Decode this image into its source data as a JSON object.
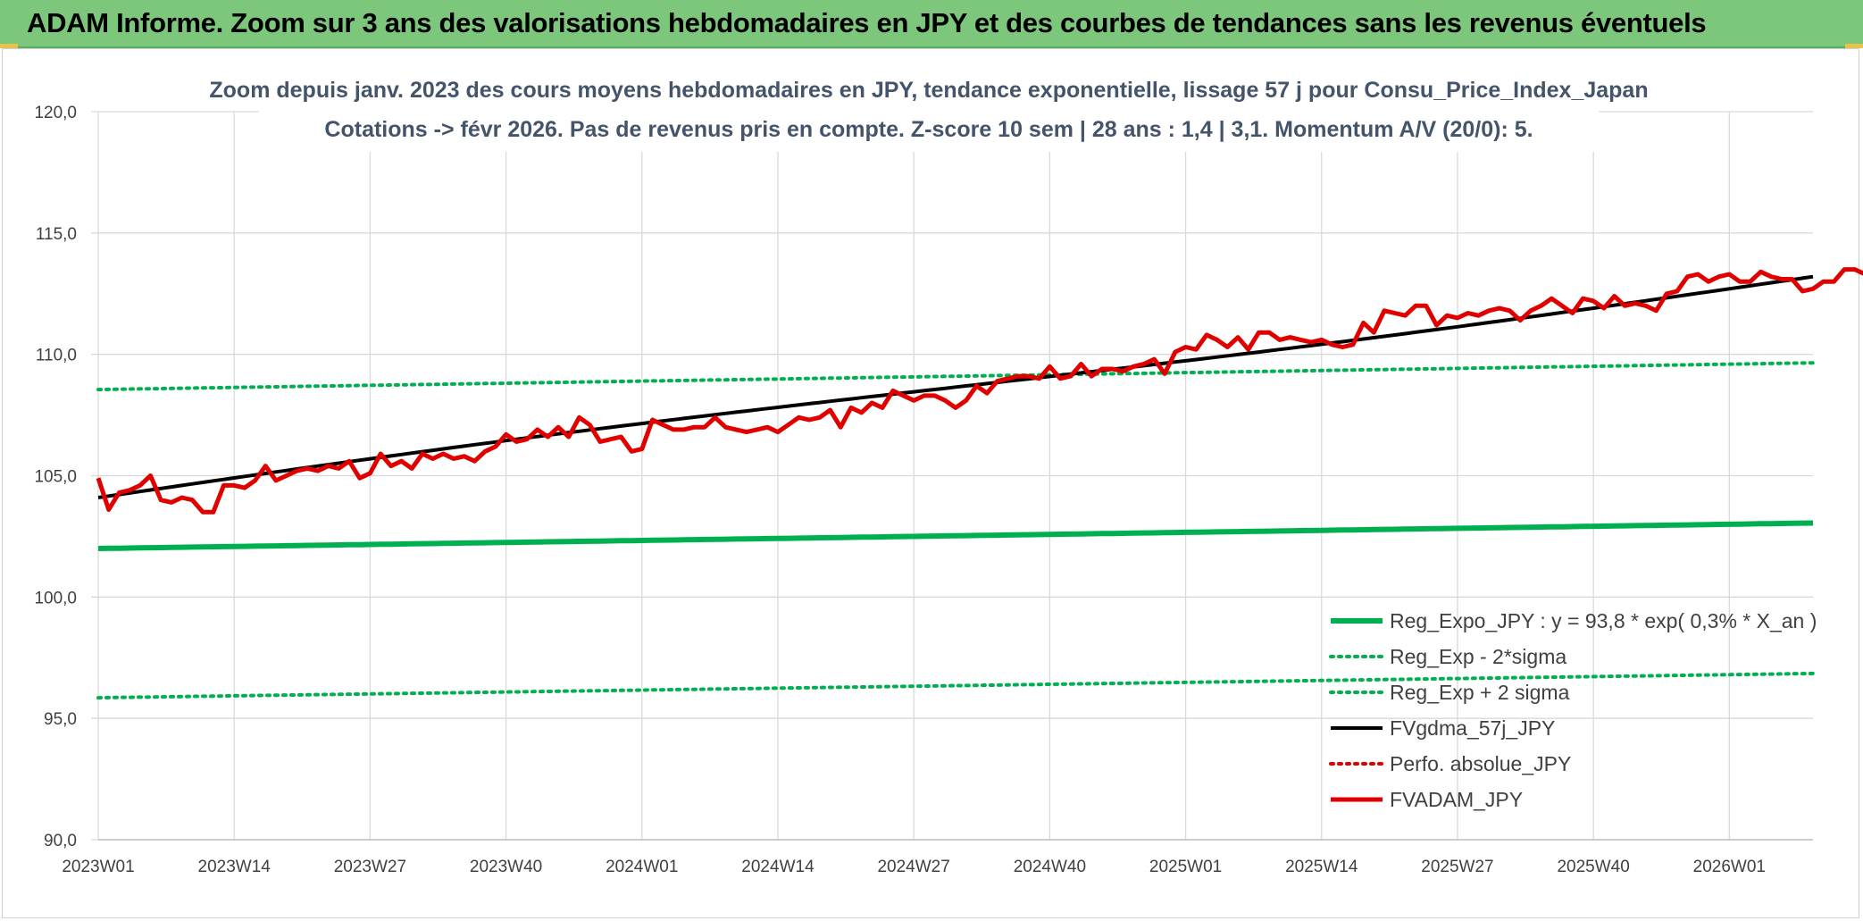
{
  "banner": {
    "title": "ADAM Informe. Zoom sur 3 ans des valorisations hebdomadaires en JPY et des courbes de tendances sans les revenus éventuels",
    "background": "#7dc77d"
  },
  "chart_data": {
    "type": "line",
    "title_line1": "Zoom depuis janv. 2023 des cours moyens hebdomadaires en JPY, tendance exponentielle, lissage 57 j pour Consu_Price_Index_Japan",
    "title_line2": "Cotations -> févr 2026. Pas de revenus pris en compte. Z-score 10 sem | 28 ans : 1,4 | 3,1. Momentum A/V (20/0): 5.",
    "xlabel": "",
    "ylabel": "",
    "ylim": [
      90,
      120
    ],
    "y_ticks": [
      "90,0",
      "95,0",
      "100,0",
      "105,0",
      "110,0",
      "115,0",
      "120,0"
    ],
    "x_ticks": [
      "2023W01",
      "2023W14",
      "2023W27",
      "2023W40",
      "2024W01",
      "2024W14",
      "2024W27",
      "2024W40",
      "2025W01",
      "2025W14",
      "2025W27",
      "2025W40",
      "2026W01"
    ],
    "x_range": [
      0,
      164
    ],
    "grid": true,
    "legend_position": "bottom-right",
    "series": [
      {
        "name": "Reg_Expo_JPY : y = 93,8 * exp( 0,3% *  X_an )",
        "color": "#00b050",
        "style": "solid-thick",
        "start": 102.0,
        "end": 103.05
      },
      {
        "name": "Reg_Exp - 2*sigma",
        "color": "#00b050",
        "style": "dotted",
        "start": 95.85,
        "end": 96.85
      },
      {
        "name": "Reg_Exp + 2 sigma",
        "color": "#00b050",
        "style": "dotted",
        "start": 108.55,
        "end": 109.65
      },
      {
        "name": "FVgdma_57j_JPY",
        "color": "#000000",
        "style": "solid",
        "start": 104.1,
        "end": 113.2
      },
      {
        "name": "Perfo. absolue_JPY",
        "color": "#e00000",
        "style": "dotted",
        "values": []
      },
      {
        "name": "FVADAM_JPY",
        "color": "#e00000",
        "style": "solid-thick",
        "values": [
          104.9,
          103.6,
          104.3,
          104.4,
          104.6,
          105.0,
          104.0,
          103.9,
          104.1,
          104.0,
          103.5,
          103.5,
          104.6,
          104.6,
          104.5,
          104.8,
          105.4,
          104.8,
          105.0,
          105.2,
          105.3,
          105.2,
          105.4,
          105.3,
          105.6,
          104.9,
          105.1,
          105.9,
          105.4,
          105.6,
          105.3,
          105.9,
          105.7,
          105.9,
          105.7,
          105.8,
          105.6,
          106.0,
          106.2,
          106.7,
          106.4,
          106.5,
          106.9,
          106.6,
          107.0,
          106.6,
          107.4,
          107.1,
          106.4,
          106.5,
          106.6,
          106.0,
          106.1,
          107.3,
          107.1,
          106.9,
          106.9,
          107.0,
          107.0,
          107.4,
          107.0,
          106.9,
          106.8,
          106.9,
          107.0,
          106.8,
          107.1,
          107.4,
          107.3,
          107.4,
          107.7,
          107.0,
          107.8,
          107.6,
          108.0,
          107.8,
          108.5,
          108.3,
          108.1,
          108.3,
          108.3,
          108.1,
          107.8,
          108.1,
          108.7,
          108.4,
          108.9,
          109.0,
          109.1,
          109.1,
          109.0,
          109.5,
          109.0,
          109.1,
          109.6,
          109.1,
          109.4,
          109.4,
          109.3,
          109.5,
          109.6,
          109.8,
          109.2,
          110.1,
          110.3,
          110.2,
          110.8,
          110.6,
          110.3,
          110.7,
          110.2,
          110.9,
          110.9,
          110.6,
          110.7,
          110.6,
          110.5,
          110.6,
          110.4,
          110.3,
          110.4,
          111.3,
          110.9,
          111.8,
          111.7,
          111.6,
          112.0,
          112.0,
          111.2,
          111.6,
          111.5,
          111.7,
          111.6,
          111.8,
          111.9,
          111.8,
          111.4,
          111.8,
          112.0,
          112.3,
          112.0,
          111.7,
          112.3,
          112.2,
          111.9,
          112.4,
          112.0,
          112.1,
          112.0,
          111.8,
          112.5,
          112.6,
          113.2,
          113.3,
          113.0,
          113.2,
          113.3,
          113.0,
          113.0,
          113.4,
          113.2,
          113.1,
          113.1,
          112.6,
          112.7,
          113.0,
          113.0,
          113.5,
          113.5,
          113.3
        ]
      }
    ]
  }
}
